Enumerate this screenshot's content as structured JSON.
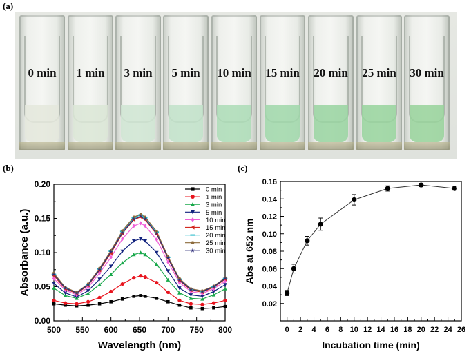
{
  "panels": {
    "a": "(a)",
    "b": "(b)",
    "c": "(c)"
  },
  "photo": {
    "cuvettes": [
      {
        "label": "0 min",
        "color": "#e4e7dc"
      },
      {
        "label": "1 min",
        "color": "#dbe6d6"
      },
      {
        "label": "3 min",
        "color": "#cfe5d2"
      },
      {
        "label": "5 min",
        "color": "#c1e2c9"
      },
      {
        "label": "10 min",
        "color": "#abdcb6"
      },
      {
        "label": "15 min",
        "color": "#9fd7a9"
      },
      {
        "label": "20 min",
        "color": "#98d3a0"
      },
      {
        "label": "25 min",
        "color": "#96d49c"
      },
      {
        "label": "30 min",
        "color": "#97d29a"
      }
    ]
  },
  "chart_data": [
    {
      "type": "line",
      "panel": "b",
      "xlabel": "Wavelength (nm)",
      "ylabel": "Absorbance (a.u.)",
      "xlim": [
        500,
        800
      ],
      "ylim": [
        0.0,
        0.2
      ],
      "xticks": [
        500,
        550,
        600,
        650,
        700,
        750,
        800
      ],
      "yticks": [
        0.0,
        0.05,
        0.1,
        0.15,
        0.2
      ],
      "ytick_labels": [
        "0.00",
        "0.05",
        "0.10",
        "0.15",
        "0.20"
      ],
      "legend_position": "top-right",
      "x": [
        500,
        520,
        540,
        560,
        580,
        600,
        620,
        640,
        652,
        660,
        680,
        700,
        720,
        740,
        760,
        780,
        800
      ],
      "series": [
        {
          "name": "0 min",
          "color": "#000000",
          "marker": "square",
          "values": [
            0.025,
            0.023,
            0.022,
            0.023,
            0.025,
            0.028,
            0.032,
            0.036,
            0.037,
            0.036,
            0.033,
            0.028,
            0.023,
            0.019,
            0.018,
            0.019,
            0.021
          ]
        },
        {
          "name": "1 min",
          "color": "#e8141e",
          "marker": "circle",
          "values": [
            0.03,
            0.026,
            0.025,
            0.028,
            0.034,
            0.043,
            0.054,
            0.063,
            0.066,
            0.064,
            0.056,
            0.042,
            0.03,
            0.025,
            0.024,
            0.026,
            0.03
          ]
        },
        {
          "name": "3 min",
          "color": "#18a84a",
          "marker": "triangle",
          "values": [
            0.048,
            0.037,
            0.033,
            0.04,
            0.053,
            0.068,
            0.085,
            0.097,
            0.1,
            0.097,
            0.083,
            0.06,
            0.041,
            0.033,
            0.032,
            0.038,
            0.047
          ]
        },
        {
          "name": "5 min",
          "color": "#12237e",
          "marker": "tri-down",
          "values": [
            0.055,
            0.041,
            0.035,
            0.044,
            0.061,
            0.08,
            0.102,
            0.117,
            0.12,
            0.117,
            0.1,
            0.073,
            0.048,
            0.038,
            0.036,
            0.043,
            0.053
          ]
        },
        {
          "name": "10 min",
          "color": "#ef5fd8",
          "marker": "diamond",
          "values": [
            0.062,
            0.045,
            0.038,
            0.049,
            0.07,
            0.093,
            0.12,
            0.139,
            0.143,
            0.139,
            0.119,
            0.086,
            0.056,
            0.043,
            0.04,
            0.047,
            0.058
          ]
        },
        {
          "name": "15 min",
          "color": "#d42a20",
          "marker": "tri-left",
          "values": [
            0.066,
            0.047,
            0.04,
            0.052,
            0.074,
            0.099,
            0.128,
            0.148,
            0.152,
            0.148,
            0.127,
            0.091,
            0.059,
            0.045,
            0.042,
            0.049,
            0.061
          ]
        },
        {
          "name": "20 min",
          "color": "#1fb7c7",
          "marker": "dash",
          "values": [
            0.068,
            0.048,
            0.041,
            0.053,
            0.076,
            0.102,
            0.131,
            0.151,
            0.155,
            0.151,
            0.13,
            0.093,
            0.061,
            0.046,
            0.043,
            0.05,
            0.062
          ]
        },
        {
          "name": "25 min",
          "color": "#8d6b3c",
          "marker": "hexagon",
          "values": [
            0.07,
            0.049,
            0.042,
            0.054,
            0.077,
            0.103,
            0.132,
            0.152,
            0.156,
            0.152,
            0.131,
            0.094,
            0.062,
            0.047,
            0.044,
            0.051,
            0.063
          ]
        },
        {
          "name": "30 min",
          "color": "#2c2c78",
          "marker": "star",
          "values": [
            0.068,
            0.048,
            0.041,
            0.053,
            0.075,
            0.101,
            0.129,
            0.149,
            0.153,
            0.149,
            0.128,
            0.092,
            0.06,
            0.046,
            0.043,
            0.05,
            0.062
          ]
        }
      ]
    },
    {
      "type": "line",
      "panel": "c",
      "xlabel": "Incubation time (min)",
      "ylabel": "Abs at 652 nm",
      "xlim": [
        -1,
        26
      ],
      "ylim": [
        0.0,
        0.16
      ],
      "xticks": [
        0,
        2,
        4,
        6,
        8,
        10,
        12,
        14,
        16,
        18,
        20,
        22,
        24,
        26
      ],
      "yticks": [
        0.02,
        0.04,
        0.06,
        0.08,
        0.1,
        0.12,
        0.14,
        0.16
      ],
      "ytick_labels": [
        "0.02",
        "0.04",
        "0.06",
        "0.08",
        "0.10",
        "0.12",
        "0.14",
        "0.16"
      ],
      "x": [
        0,
        1,
        3,
        5,
        10,
        15,
        20,
        25
      ],
      "values": [
        0.032,
        0.06,
        0.092,
        0.111,
        0.139,
        0.152,
        0.156,
        0.152
      ],
      "errors": [
        0.003,
        0.005,
        0.005,
        0.007,
        0.006,
        0.003,
        0.002,
        0.002
      ]
    }
  ]
}
